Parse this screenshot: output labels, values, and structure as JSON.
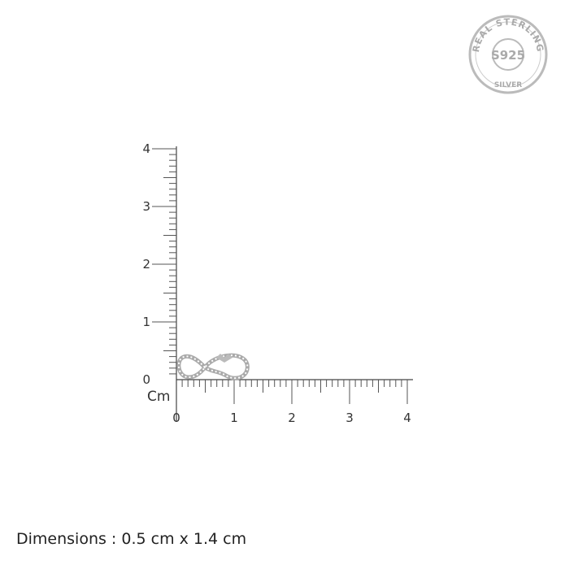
{
  "seal": {
    "top_text": "REAL STERLING",
    "center_text": "S925",
    "bottom_text": "SILVER"
  },
  "ruler": {
    "unit": "Cm",
    "x_ticks": [
      "0",
      "1",
      "2",
      "3",
      "4"
    ],
    "y_ticks": [
      "0",
      "1",
      "2",
      "3",
      "4"
    ],
    "range": [
      0,
      4
    ],
    "minor_step": 0.1
  },
  "product": {
    "shape": "infinity-with-hearts",
    "width_cm": 1.4,
    "height_cm": 0.5
  },
  "caption": {
    "dimensions": "Dimensions : 0.5 cm x 1.4 cm"
  }
}
